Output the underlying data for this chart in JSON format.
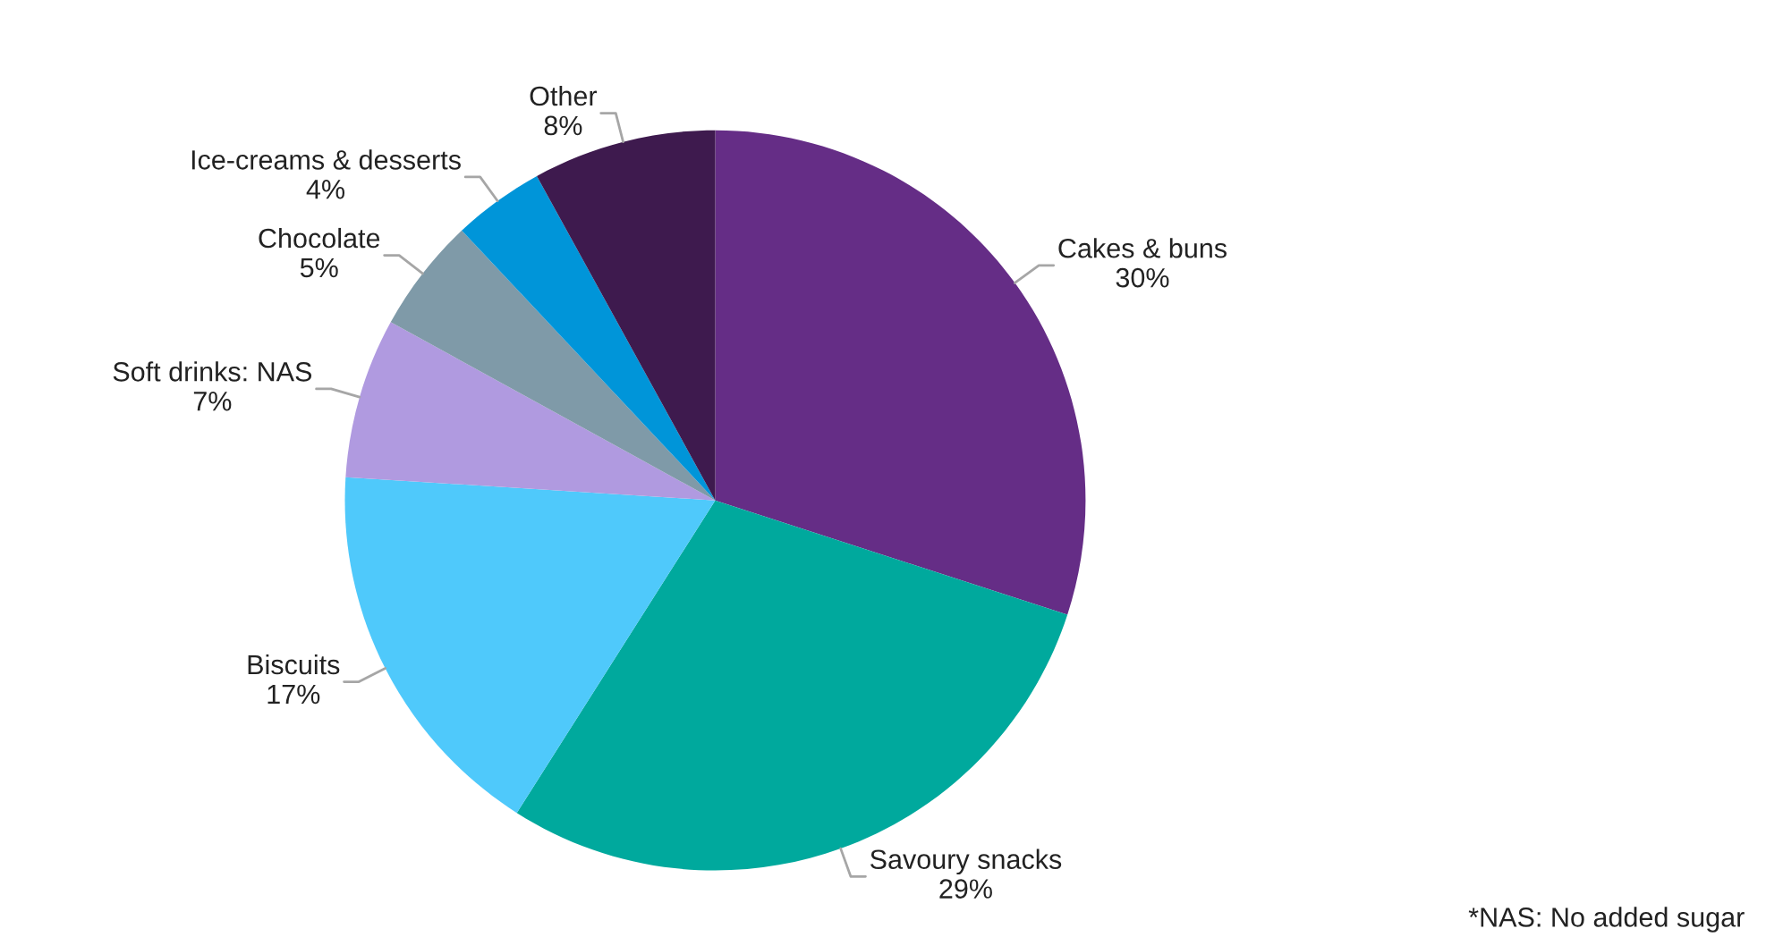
{
  "chart_data": {
    "type": "pie",
    "categories": [
      "Cakes & buns",
      "Savoury snacks",
      "Biscuits",
      "Soft drinks: NAS",
      "Chocolate",
      "Ice-creams & desserts",
      "Other"
    ],
    "values": [
      30,
      29,
      17,
      7,
      5,
      4,
      8
    ],
    "colors": [
      "#652d86",
      "#00a99d",
      "#4fc9fb",
      "#b09ae0",
      "#7f9aa8",
      "#0095d9",
      "#3e1a4e"
    ],
    "value_labels": [
      "30%",
      "29%",
      "17%",
      "7%",
      "5%",
      "4%",
      "8%"
    ],
    "legend": false,
    "annotations": [
      "*NAS: No added sugar"
    ]
  }
}
